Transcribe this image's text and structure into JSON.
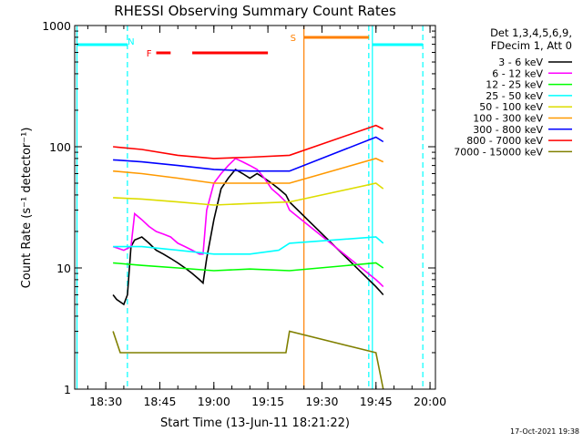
{
  "chart_data": {
    "type": "line",
    "title": "RHESSI Observing Summary Count Rates",
    "xlabel": "Start Time (13-Jun-11 18:21:22)",
    "ylabel": "Count Rate (s⁻¹ detector⁻¹)",
    "yscale": "log",
    "ylim": [
      1,
      1000
    ],
    "xlim": [
      "18:21:22",
      "20:01:30"
    ],
    "xticks": [
      "18:30",
      "18:45",
      "19:00",
      "19:15",
      "19:30",
      "19:45",
      "20:00"
    ],
    "yticks": [
      "1",
      "10",
      "100",
      "1000"
    ],
    "grid": false,
    "legend_position": "right",
    "legend_header": [
      "Det 1,3,4,5,6,9,",
      "FDecim 1, Att 0"
    ],
    "footer": "17-Oct-2021 19:38",
    "series": [
      {
        "name": "3 - 6 keV",
        "color": "#000000",
        "x": [
          "18:32",
          "18:33",
          "18:35",
          "18:36",
          "18:37",
          "18:38",
          "18:40",
          "18:42",
          "18:44",
          "18:46",
          "18:48",
          "18:50",
          "18:52",
          "18:54",
          "18:56",
          "18:57",
          "18:58",
          "19:00",
          "19:02",
          "19:04",
          "19:06",
          "19:08",
          "19:10",
          "19:12",
          "19:14",
          "19:16",
          "19:18",
          "19:20",
          "19:21",
          "19:45",
          "19:46",
          "19:47"
        ],
        "y": [
          6,
          5.5,
          5,
          6,
          15,
          17,
          18,
          16,
          14,
          13,
          12,
          11,
          10,
          9,
          8,
          7.5,
          12,
          25,
          45,
          55,
          65,
          60,
          55,
          60,
          55,
          50,
          45,
          40,
          35,
          7,
          6.5,
          6
        ]
      },
      {
        "name": "6 - 12 keV",
        "color": "#ff00ff",
        "x": [
          "18:32",
          "18:35",
          "18:37",
          "18:38",
          "18:40",
          "18:42",
          "18:44",
          "18:46",
          "18:48",
          "18:50",
          "18:52",
          "18:54",
          "18:56",
          "18:57",
          "18:58",
          "19:00",
          "19:02",
          "19:04",
          "19:06",
          "19:08",
          "19:10",
          "19:12",
          "19:14",
          "19:16",
          "19:18",
          "19:20",
          "19:21",
          "19:45",
          "19:46",
          "19:47"
        ],
        "y": [
          15,
          14,
          15,
          28,
          25,
          22,
          20,
          19,
          18,
          16,
          15,
          14,
          13,
          13,
          30,
          50,
          60,
          70,
          80,
          75,
          70,
          65,
          55,
          45,
          40,
          35,
          30,
          8,
          7.5,
          7
        ]
      },
      {
        "name": "12 - 25 keV",
        "color": "#00ff00",
        "x": [
          "18:32",
          "18:40",
          "18:50",
          "19:00",
          "19:10",
          "19:21",
          "19:45",
          "19:47"
        ],
        "y": [
          11,
          10.5,
          10,
          9.5,
          9.8,
          9.5,
          11,
          10
        ]
      },
      {
        "name": "25 - 50 keV",
        "color": "#00ffff",
        "x": [
          "18:32",
          "18:40",
          "18:50",
          "19:00",
          "19:10",
          "19:18",
          "19:21",
          "19:45",
          "19:47"
        ],
        "y": [
          15,
          15,
          14,
          13,
          13,
          14,
          16,
          18,
          16
        ]
      },
      {
        "name": "50 - 100 keV",
        "color": "#dddd00",
        "x": [
          "18:32",
          "18:40",
          "18:50",
          "19:00",
          "19:10",
          "19:21",
          "19:45",
          "19:47"
        ],
        "y": [
          38,
          37,
          35,
          33,
          34,
          35,
          50,
          45
        ]
      },
      {
        "name": "100 - 300 keV",
        "color": "#ff9900",
        "x": [
          "18:32",
          "18:40",
          "18:50",
          "19:00",
          "19:10",
          "19:21",
          "19:45",
          "19:47"
        ],
        "y": [
          63,
          60,
          55,
          50,
          50,
          50,
          80,
          75
        ]
      },
      {
        "name": "300 - 800 keV",
        "color": "#0000ff",
        "x": [
          "18:32",
          "18:40",
          "18:50",
          "19:00",
          "19:10",
          "19:21",
          "19:45",
          "19:47"
        ],
        "y": [
          78,
          75,
          70,
          65,
          63,
          63,
          120,
          110
        ]
      },
      {
        "name": "800 - 7000 keV",
        "color": "#ff0000",
        "x": [
          "18:32",
          "18:40",
          "18:50",
          "19:00",
          "19:10",
          "19:21",
          "19:45",
          "19:47"
        ],
        "y": [
          100,
          95,
          85,
          80,
          82,
          85,
          150,
          140
        ]
      },
      {
        "name": "7000 - 15000 keV",
        "color": "#808000",
        "x": [
          "18:32",
          "18:34",
          "18:36",
          "18:40",
          "18:50",
          "19:00",
          "19:10",
          "19:20",
          "19:21",
          "19:45",
          "19:47"
        ],
        "y": [
          3,
          2,
          2,
          2,
          2,
          2,
          2,
          2,
          3,
          2,
          1
        ]
      }
    ],
    "vertical_lines": [
      {
        "time": "18:22",
        "color": "#00ffff",
        "style": "solid"
      },
      {
        "time": "18:36",
        "color": "#00ffff",
        "style": "dashed"
      },
      {
        "time": "19:25",
        "color": "#ff8000",
        "style": "solid"
      },
      {
        "time": "19:43",
        "color": "#00ffff",
        "style": "dashed"
      },
      {
        "time": "19:44",
        "color": "#00ffff",
        "style": "solid"
      },
      {
        "time": "19:58",
        "color": "#00ffff",
        "style": "dashed"
      }
    ],
    "flag_bars": [
      {
        "start": "18:22",
        "end": "18:36",
        "color": "#00ffff",
        "level": "top",
        "label": "N",
        "label_time": "18:37"
      },
      {
        "start": "18:44",
        "end": "18:48",
        "color": "#ff0000",
        "level": "lower",
        "label": "F",
        "label_time": "18:42"
      },
      {
        "start": "18:54",
        "end": "19:15",
        "color": "#ff0000",
        "level": "lower",
        "label": "",
        "label_time": ""
      },
      {
        "start": "19:25",
        "end": "19:43",
        "color": "#ff8000",
        "level": "upper",
        "label": "S",
        "label_time": "19:22"
      },
      {
        "start": "19:44",
        "end": "19:58",
        "color": "#00ffff",
        "level": "top",
        "label": "",
        "label_time": ""
      }
    ]
  }
}
